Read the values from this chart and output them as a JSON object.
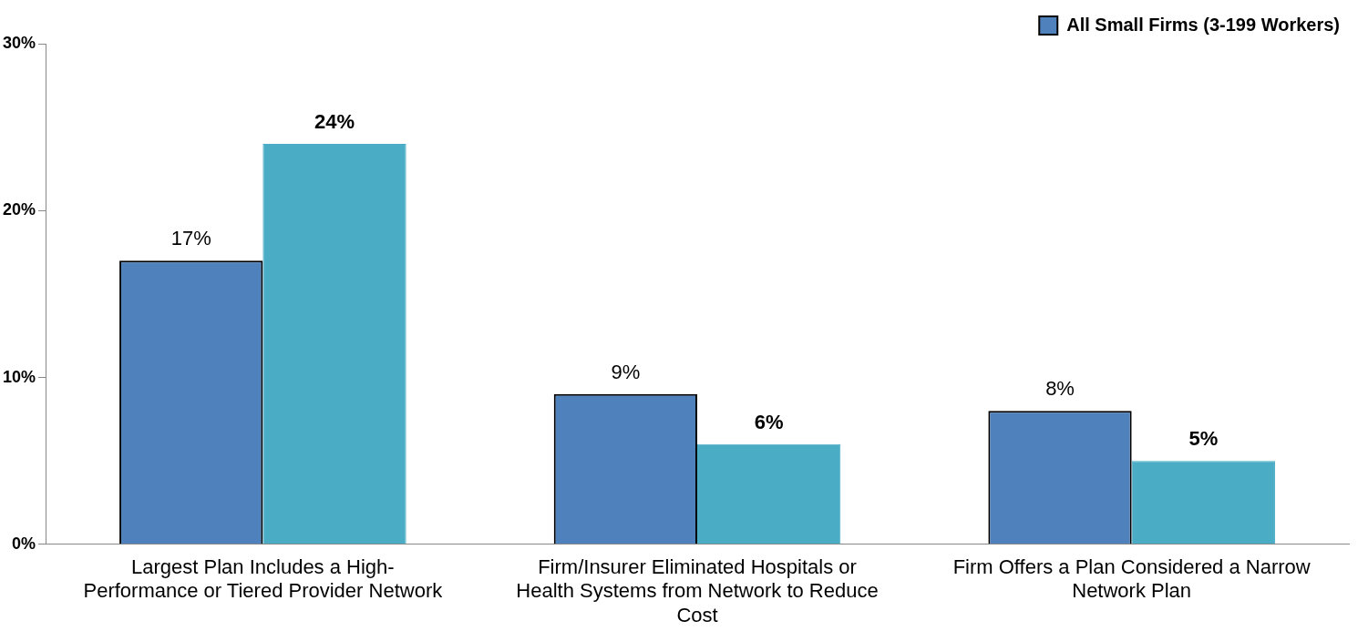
{
  "chart_data": {
    "type": "bar",
    "categories": [
      "Largest Plan Includes a High-Performance or Tiered Provider Network",
      "Firm/Insurer Eliminated Hospitals or Health Systems from Network to Reduce Cost",
      "Firm Offers a Plan Considered a Narrow Network Plan"
    ],
    "series": [
      {
        "name": "All Small Firms (3-199 Workers)",
        "color": "#4f81bd",
        "values": [
          17,
          9,
          8
        ],
        "value_labels": [
          "17%",
          "9%",
          "8%"
        ]
      },
      {
        "color": "#4bacc6",
        "values": [
          24,
          6,
          5
        ],
        "value_labels": [
          "24%",
          "6%",
          "5%"
        ]
      }
    ],
    "ylim": [
      0,
      30
    ],
    "yticks": [
      {
        "value": 0,
        "label": "0%"
      },
      {
        "value": 10,
        "label": "10%"
      },
      {
        "value": 20,
        "label": "20%"
      },
      {
        "value": 30,
        "label": "30%"
      }
    ],
    "grid": false,
    "legend": "top right"
  }
}
